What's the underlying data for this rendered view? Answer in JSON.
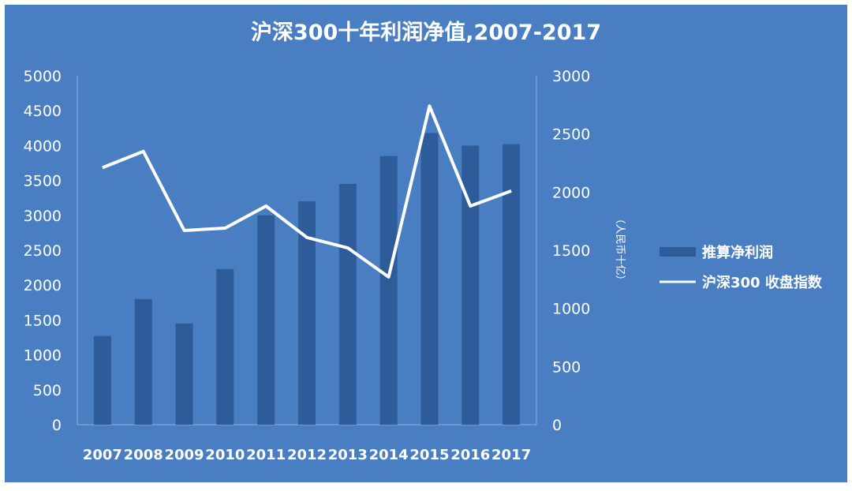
{
  "chart_data": {
    "title": "沪深300十年利润净值,2007-2017",
    "categories": [
      "2007",
      "2008",
      "2009",
      "2010",
      "2011",
      "2012",
      "2013",
      "2014",
      "2015",
      "2016",
      "2017"
    ],
    "series": [
      {
        "name": "推算净利润",
        "type": "bar",
        "axis": "left",
        "values": [
          1270,
          1800,
          1450,
          2230,
          3000,
          3200,
          3450,
          3850,
          4180,
          4000,
          4020
        ]
      },
      {
        "name": "沪深300 收盘指数",
        "type": "line",
        "axis": "right",
        "values": [
          2210,
          2350,
          1670,
          1690,
          1880,
          1610,
          1520,
          1270,
          2740,
          1880,
          2010
        ]
      }
    ],
    "y_left": {
      "min": 0,
      "max": 5000,
      "ticks": [
        "0",
        "500",
        "1000",
        "1500",
        "2000",
        "2500",
        "3000",
        "3500",
        "4000",
        "4500",
        "5000"
      ]
    },
    "y_right": {
      "min": 0,
      "max": 3000,
      "label": "（人民币十亿）",
      "ticks": [
        "0",
        "500",
        "1000",
        "1500",
        "2000",
        "2500",
        "3000"
      ]
    },
    "legend_position": "right",
    "grid": false,
    "colors": {
      "background": "#4a7ec2",
      "bar": "#2e5c9b",
      "line": "#ffffff",
      "text": "#ffffff",
      "axis": "#8eb1de"
    }
  }
}
